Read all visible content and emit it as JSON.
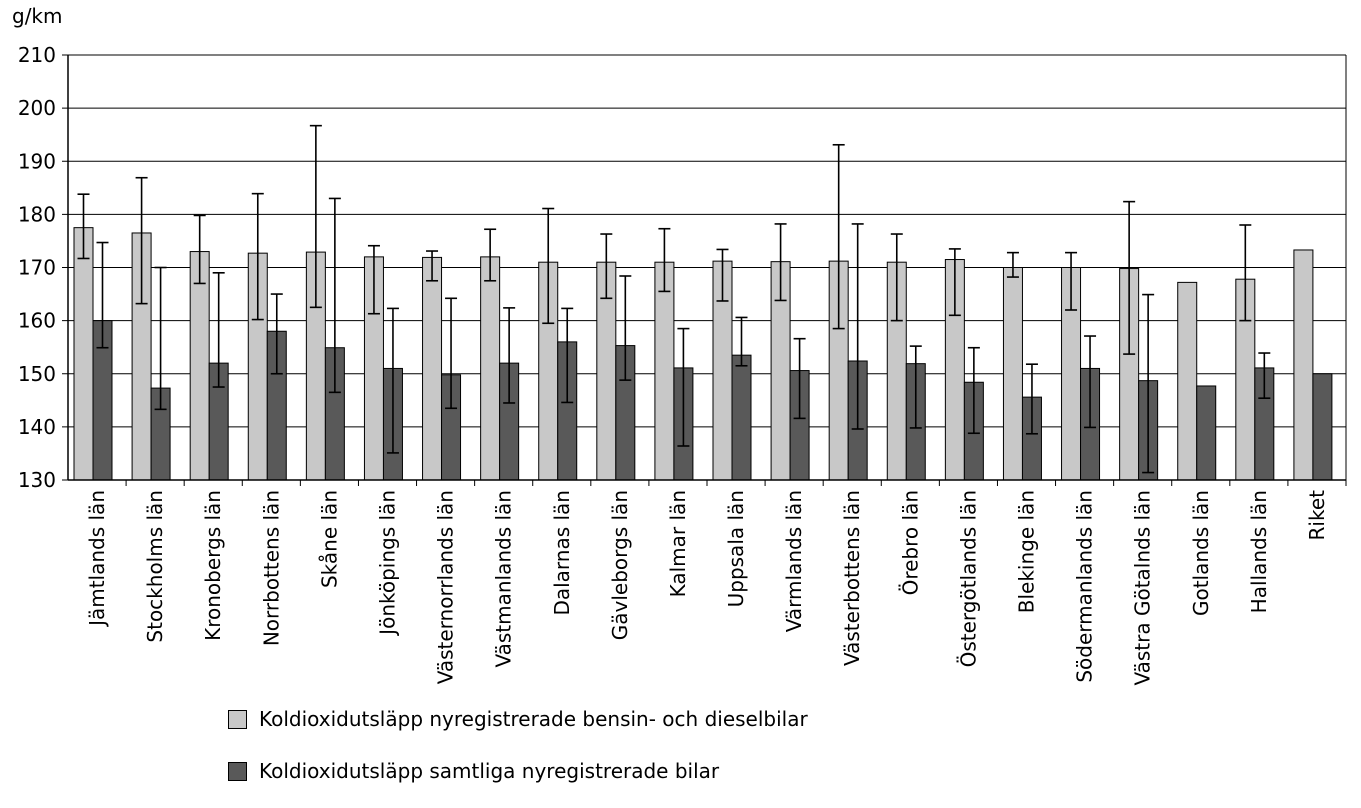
{
  "chart_data": {
    "type": "bar",
    "title": "",
    "ylabel": "g/km",
    "ylim": [
      130,
      210
    ],
    "yticks": [
      130,
      140,
      150,
      160,
      170,
      180,
      190,
      200,
      210
    ],
    "grid": true,
    "legend_position": "bottom",
    "categories": [
      "Jämtlands län",
      "Stockholms län",
      "Kronobergs län",
      "Norrbottens län",
      "Skåne län",
      "Jönköpings län",
      "Västernorrlands län",
      "Västmanlands län",
      "Dalarnas län",
      "Gävleborgs län",
      "Kalmar län",
      "Uppsala län",
      "Värmlands län",
      "Västerbottens län",
      "Örebro län",
      "Östergötlands län",
      "Blekinge län",
      "Södermanlands län",
      "Västra Götalnds län",
      "Gotlands län",
      "Hallands län",
      "Riket"
    ],
    "series": [
      {
        "name": "Koldioxidutsläpp nyregistrerade bensin- och dieselbilar",
        "color": "#c8c8c8",
        "values": [
          177.5,
          176.5,
          173,
          172.7,
          172.9,
          172,
          171.9,
          172,
          171,
          171,
          171,
          171.2,
          171.1,
          171.2,
          171,
          171.5,
          170,
          170,
          169.8,
          167.2,
          167.8,
          173.3
        ],
        "err_low": [
          171.7,
          163.2,
          167,
          160.2,
          162.5,
          161.3,
          167.5,
          167.5,
          159.5,
          164.2,
          165.5,
          163.7,
          163.8,
          158.5,
          160,
          161,
          168.2,
          162,
          153.7,
          null,
          160,
          null
        ],
        "err_high": [
          183.8,
          186.9,
          179.8,
          183.9,
          196.7,
          174.1,
          173.1,
          177.2,
          181.1,
          176.3,
          177.3,
          173.4,
          178.2,
          193.1,
          176.3,
          173.5,
          172.8,
          172.8,
          182.4,
          null,
          178,
          null
        ]
      },
      {
        "name": "Koldioxidutsläpp samtliga nyregistrerade bilar",
        "color": "#595959",
        "values": [
          160,
          147.3,
          152,
          158,
          154.9,
          151,
          149.8,
          152,
          156,
          155.3,
          151.1,
          153.5,
          150.6,
          152.4,
          151.9,
          148.4,
          145.6,
          151,
          148.7,
          147.7,
          151.1,
          150
        ],
        "err_low": [
          154.9,
          143.3,
          147.5,
          150,
          146.5,
          135.1,
          143.5,
          144.5,
          144.6,
          148.8,
          136.4,
          151.5,
          141.6,
          139.6,
          139.8,
          138.8,
          138.7,
          139.9,
          131.4,
          null,
          145.4,
          null
        ],
        "err_high": [
          174.7,
          170,
          169,
          165,
          183,
          162.3,
          164.2,
          162.4,
          162.3,
          168.4,
          158.5,
          160.6,
          156.6,
          178.2,
          155.2,
          154.9,
          151.8,
          157.1,
          164.9,
          null,
          153.9,
          null
        ]
      }
    ]
  }
}
